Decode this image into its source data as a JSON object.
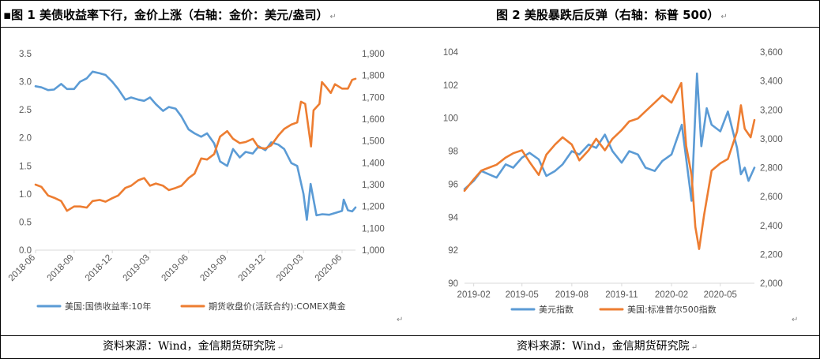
{
  "left": {
    "title": "▪图 1 美债收益率下行，金价上涨（右轴：金价：美元/盎司）",
    "source": "资料来源：Wind，金信期货研究院"
  },
  "right": {
    "title": "图 2 美股暴跌后反弹（右轴：标普 500）",
    "source": "资料来源：Wind，金信期货研究院"
  },
  "chart_data": [
    {
      "type": "line",
      "title": "美债收益率下行，金价上涨",
      "x_ticks": [
        "2018-06",
        "2018-09",
        "2018-12",
        "2019-03",
        "2019-06",
        "2019-09",
        "2019-12",
        "2020-03",
        "2020-06"
      ],
      "y_left_ticks": [
        "0.0",
        "0.5",
        "1.0",
        "1.5",
        "2.0",
        "2.5",
        "3.0",
        "3.5"
      ],
      "y_right_ticks": [
        "1,000",
        "1,100",
        "1,200",
        "1,300",
        "1,400",
        "1,500",
        "1,600",
        "1,700",
        "1,800",
        "1,900"
      ],
      "ylim_left": [
        0,
        3.5
      ],
      "ylim_right": [
        1000,
        1900
      ],
      "grid": false,
      "legend_position": "bottom",
      "series": [
        {
          "name": "美国:国债收益率:10年",
          "axis": "left",
          "color": "#5B9BD5",
          "points": [
            [
              "2018-06-01",
              2.92
            ],
            [
              "2018-06-15",
              2.9
            ],
            [
              "2018-07-01",
              2.85
            ],
            [
              "2018-07-15",
              2.86
            ],
            [
              "2018-08-01",
              2.96
            ],
            [
              "2018-08-15",
              2.87
            ],
            [
              "2018-09-01",
              2.87
            ],
            [
              "2018-09-15",
              3.0
            ],
            [
              "2018-10-01",
              3.06
            ],
            [
              "2018-10-15",
              3.18
            ],
            [
              "2018-11-01",
              3.15
            ],
            [
              "2018-11-15",
              3.12
            ],
            [
              "2018-12-01",
              3.0
            ],
            [
              "2018-12-15",
              2.87
            ],
            [
              "2019-01-01",
              2.68
            ],
            [
              "2019-01-15",
              2.72
            ],
            [
              "2019-02-01",
              2.68
            ],
            [
              "2019-02-15",
              2.66
            ],
            [
              "2019-03-01",
              2.72
            ],
            [
              "2019-03-15",
              2.6
            ],
            [
              "2019-04-01",
              2.48
            ],
            [
              "2019-04-15",
              2.55
            ],
            [
              "2019-05-01",
              2.52
            ],
            [
              "2019-05-15",
              2.38
            ],
            [
              "2019-06-01",
              2.15
            ],
            [
              "2019-06-15",
              2.08
            ],
            [
              "2019-07-01",
              2.02
            ],
            [
              "2019-07-15",
              2.08
            ],
            [
              "2019-08-01",
              1.9
            ],
            [
              "2019-08-15",
              1.58
            ],
            [
              "2019-09-01",
              1.5
            ],
            [
              "2019-09-15",
              1.8
            ],
            [
              "2019-10-01",
              1.65
            ],
            [
              "2019-10-15",
              1.75
            ],
            [
              "2019-11-01",
              1.72
            ],
            [
              "2019-11-15",
              1.85
            ],
            [
              "2019-12-01",
              1.78
            ],
            [
              "2019-12-15",
              1.92
            ],
            [
              "2020-01-01",
              1.88
            ],
            [
              "2020-01-15",
              1.8
            ],
            [
              "2020-02-01",
              1.55
            ],
            [
              "2020-02-15",
              1.5
            ],
            [
              "2020-03-01",
              1.0
            ],
            [
              "2020-03-09",
              0.54
            ],
            [
              "2020-03-18",
              1.18
            ],
            [
              "2020-04-01",
              0.62
            ],
            [
              "2020-04-15",
              0.64
            ],
            [
              "2020-05-01",
              0.63
            ],
            [
              "2020-05-15",
              0.66
            ],
            [
              "2020-06-01",
              0.7
            ],
            [
              "2020-06-05",
              0.9
            ],
            [
              "2020-06-15",
              0.71
            ],
            [
              "2020-06-25",
              0.69
            ],
            [
              "2020-07-03",
              0.76
            ]
          ]
        },
        {
          "name": "期货收盘价(活跃合约):COMEX黄金",
          "axis": "right",
          "color": "#ED7D31",
          "points": [
            [
              "2018-06-01",
              1300
            ],
            [
              "2018-06-15",
              1290
            ],
            [
              "2018-07-01",
              1250
            ],
            [
              "2018-07-15",
              1240
            ],
            [
              "2018-08-01",
              1225
            ],
            [
              "2018-08-15",
              1180
            ],
            [
              "2018-09-01",
              1200
            ],
            [
              "2018-09-15",
              1200
            ],
            [
              "2018-10-01",
              1195
            ],
            [
              "2018-10-15",
              1225
            ],
            [
              "2018-11-01",
              1230
            ],
            [
              "2018-11-15",
              1222
            ],
            [
              "2018-12-01",
              1238
            ],
            [
              "2018-12-15",
              1250
            ],
            [
              "2019-01-01",
              1285
            ],
            [
              "2019-01-15",
              1295
            ],
            [
              "2019-02-01",
              1320
            ],
            [
              "2019-02-15",
              1330
            ],
            [
              "2019-03-01",
              1295
            ],
            [
              "2019-03-15",
              1305
            ],
            [
              "2019-04-01",
              1295
            ],
            [
              "2019-04-15",
              1275
            ],
            [
              "2019-05-01",
              1285
            ],
            [
              "2019-05-15",
              1295
            ],
            [
              "2019-06-01",
              1330
            ],
            [
              "2019-06-15",
              1350
            ],
            [
              "2019-07-01",
              1420
            ],
            [
              "2019-07-15",
              1415
            ],
            [
              "2019-08-01",
              1440
            ],
            [
              "2019-08-15",
              1520
            ],
            [
              "2019-09-01",
              1545
            ],
            [
              "2019-09-15",
              1510
            ],
            [
              "2019-10-01",
              1490
            ],
            [
              "2019-10-15",
              1495
            ],
            [
              "2019-11-01",
              1510
            ],
            [
              "2019-11-15",
              1470
            ],
            [
              "2019-12-01",
              1465
            ],
            [
              "2019-12-15",
              1480
            ],
            [
              "2020-01-01",
              1525
            ],
            [
              "2020-01-15",
              1555
            ],
            [
              "2020-02-01",
              1575
            ],
            [
              "2020-02-15",
              1585
            ],
            [
              "2020-02-24",
              1680
            ],
            [
              "2020-03-05",
              1670
            ],
            [
              "2020-03-19",
              1475
            ],
            [
              "2020-03-25",
              1640
            ],
            [
              "2020-04-08",
              1670
            ],
            [
              "2020-04-14",
              1770
            ],
            [
              "2020-04-25",
              1745
            ],
            [
              "2020-05-05",
              1720
            ],
            [
              "2020-05-15",
              1760
            ],
            [
              "2020-06-01",
              1740
            ],
            [
              "2020-06-15",
              1740
            ],
            [
              "2020-06-25",
              1780
            ],
            [
              "2020-07-03",
              1785
            ]
          ]
        }
      ]
    },
    {
      "type": "line",
      "title": "美股暴跌后反弹",
      "x_ticks": [
        "2019-02",
        "2019-05",
        "2019-08",
        "2019-11",
        "2020-02",
        "2020-05"
      ],
      "y_left_ticks": [
        "90",
        "92",
        "94",
        "96",
        "98",
        "100",
        "102",
        "104"
      ],
      "y_right_ticks": [
        "2,000",
        "2,200",
        "2,400",
        "2,600",
        "2,800",
        "3,000",
        "3,200",
        "3,400",
        "3,600"
      ],
      "ylim_left": [
        90,
        104
      ],
      "ylim_right": [
        2000,
        3600
      ],
      "grid": false,
      "legend_position": "bottom",
      "series": [
        {
          "name": "美元指数",
          "axis": "left",
          "color": "#5B9BD5",
          "points": [
            [
              "2019-01-15",
              95.7
            ],
            [
              "2019-02-01",
              96.2
            ],
            [
              "2019-02-15",
              96.8
            ],
            [
              "2019-03-01",
              96.6
            ],
            [
              "2019-03-15",
              96.4
            ],
            [
              "2019-04-01",
              97.2
            ],
            [
              "2019-04-15",
              97.0
            ],
            [
              "2019-05-01",
              97.6
            ],
            [
              "2019-05-15",
              97.9
            ],
            [
              "2019-06-01",
              97.5
            ],
            [
              "2019-06-15",
              96.5
            ],
            [
              "2019-07-01",
              96.8
            ],
            [
              "2019-07-15",
              97.2
            ],
            [
              "2019-08-01",
              98.0
            ],
            [
              "2019-08-15",
              97.8
            ],
            [
              "2019-09-01",
              98.4
            ],
            [
              "2019-09-15",
              98.2
            ],
            [
              "2019-10-01",
              99.0
            ],
            [
              "2019-10-15",
              98.0
            ],
            [
              "2019-11-01",
              97.3
            ],
            [
              "2019-11-15",
              98.0
            ],
            [
              "2019-12-01",
              97.8
            ],
            [
              "2019-12-15",
              97.0
            ],
            [
              "2020-01-01",
              96.8
            ],
            [
              "2020-01-15",
              97.4
            ],
            [
              "2020-02-01",
              97.8
            ],
            [
              "2020-02-20",
              99.6
            ],
            [
              "2020-03-09",
              95.0
            ],
            [
              "2020-03-19",
              102.7
            ],
            [
              "2020-03-27",
              98.3
            ],
            [
              "2020-04-06",
              100.6
            ],
            [
              "2020-04-15",
              99.6
            ],
            [
              "2020-05-01",
              99.2
            ],
            [
              "2020-05-15",
              100.4
            ],
            [
              "2020-06-01",
              98.2
            ],
            [
              "2020-06-08",
              96.6
            ],
            [
              "2020-06-15",
              97.0
            ],
            [
              "2020-06-22",
              96.2
            ],
            [
              "2020-07-03",
              97.0
            ]
          ]
        },
        {
          "name": "美国:标准普尔500指数",
          "axis": "right",
          "color": "#ED7D31",
          "points": [
            [
              "2019-01-15",
              2640
            ],
            [
              "2019-02-01",
              2720
            ],
            [
              "2019-02-15",
              2780
            ],
            [
              "2019-03-01",
              2800
            ],
            [
              "2019-03-15",
              2820
            ],
            [
              "2019-04-01",
              2870
            ],
            [
              "2019-04-15",
              2900
            ],
            [
              "2019-05-01",
              2920
            ],
            [
              "2019-05-15",
              2840
            ],
            [
              "2019-06-01",
              2750
            ],
            [
              "2019-06-15",
              2890
            ],
            [
              "2019-07-01",
              2960
            ],
            [
              "2019-07-15",
              3010
            ],
            [
              "2019-08-01",
              2960
            ],
            [
              "2019-08-15",
              2850
            ],
            [
              "2019-09-01",
              2920
            ],
            [
              "2019-09-15",
              3000
            ],
            [
              "2019-10-01",
              2920
            ],
            [
              "2019-10-15",
              3000
            ],
            [
              "2019-11-01",
              3060
            ],
            [
              "2019-11-15",
              3120
            ],
            [
              "2019-12-01",
              3140
            ],
            [
              "2019-12-15",
              3190
            ],
            [
              "2020-01-01",
              3250
            ],
            [
              "2020-01-15",
              3300
            ],
            [
              "2020-02-01",
              3250
            ],
            [
              "2020-02-19",
              3386
            ],
            [
              "2020-02-28",
              2950
            ],
            [
              "2020-03-09",
              2750
            ],
            [
              "2020-03-16",
              2390
            ],
            [
              "2020-03-23",
              2237
            ],
            [
              "2020-04-01",
              2470
            ],
            [
              "2020-04-15",
              2780
            ],
            [
              "2020-05-01",
              2830
            ],
            [
              "2020-05-15",
              2860
            ],
            [
              "2020-06-01",
              3050
            ],
            [
              "2020-06-08",
              3232
            ],
            [
              "2020-06-15",
              3070
            ],
            [
              "2020-06-26",
              3010
            ],
            [
              "2020-07-03",
              3130
            ]
          ]
        }
      ]
    }
  ]
}
